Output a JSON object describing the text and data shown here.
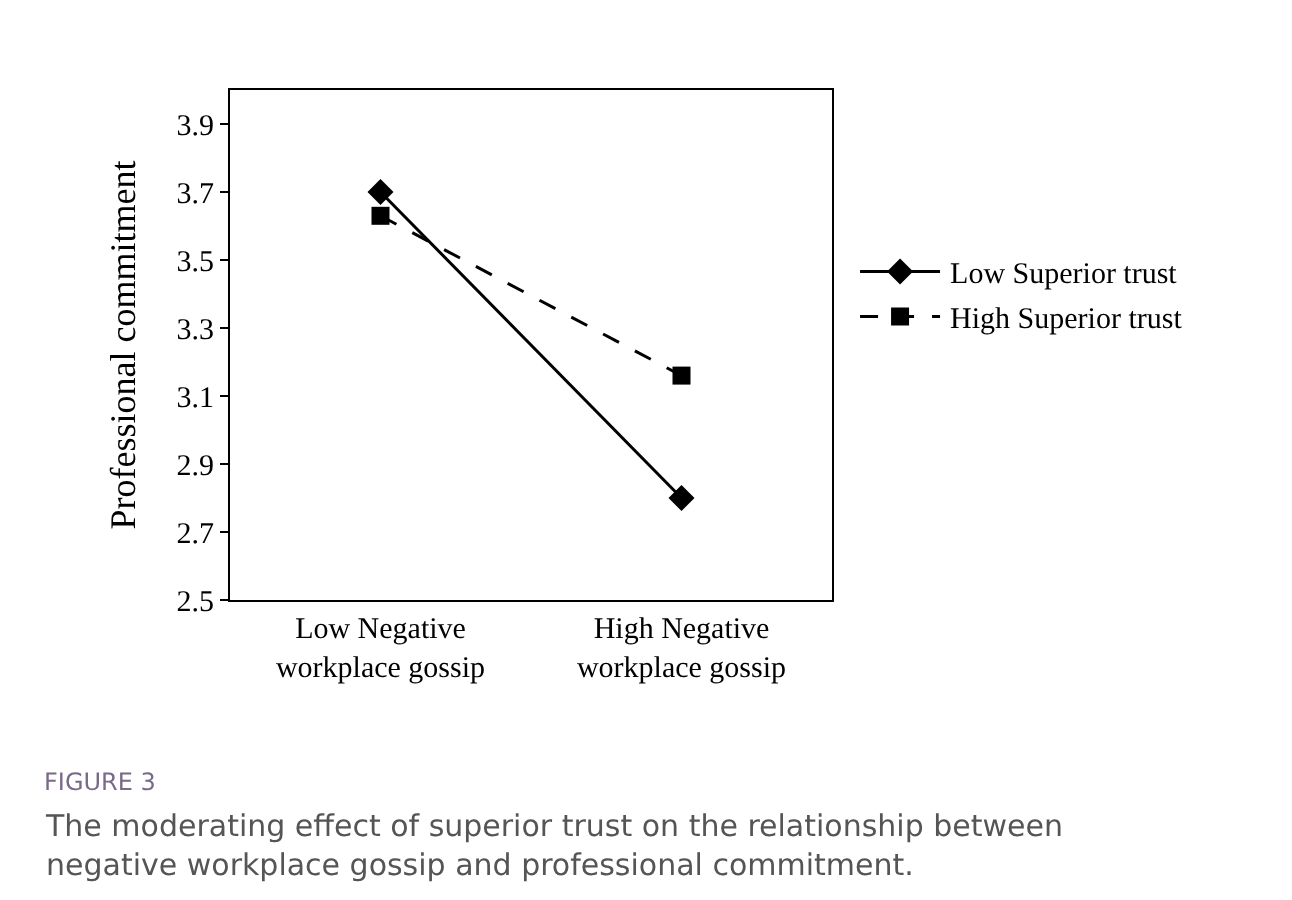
{
  "chart_data": {
    "type": "line",
    "title": "FIGURE 3",
    "subtitle": "The moderating effect of superior trust on the relationship between negative workplace gossip and professional commitment.",
    "ylabel": "Professional commitment",
    "categories": [
      "Low Negative workplace gossip",
      "High Negative workplace gossip"
    ],
    "series": [
      {
        "name": "Low Superior trust",
        "color": "#000000",
        "values": [
          3.7,
          2.8
        ],
        "marker": "diamond",
        "line_style": "solid"
      },
      {
        "name": "High Superior trust",
        "color": "#000000",
        "values": [
          3.63,
          3.16
        ],
        "marker": "square",
        "line_style": "dashed"
      }
    ],
    "ylim": [
      2.5,
      4.0
    ],
    "yticks": [
      2.5,
      2.7,
      2.9,
      3.1,
      3.3,
      3.5,
      3.7,
      3.9
    ],
    "legend": "right"
  }
}
